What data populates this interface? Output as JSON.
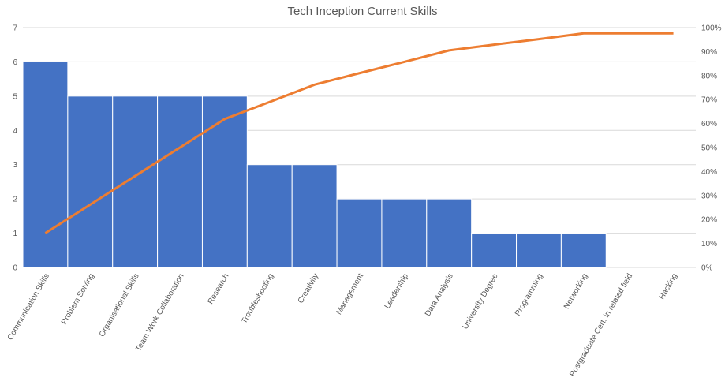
{
  "chart_data": {
    "type": "bar",
    "title": "Tech Inception Current Skills",
    "categories": [
      "Communication Skills",
      "Problem Solving",
      "Organisational Skills",
      "Team Work Collaboration",
      "Research",
      "Troubleshooting",
      "Creativity",
      "Management",
      "Leadership",
      "Data Analysis",
      "University Degree",
      "Programming",
      "Networking",
      "Postgraduate Cert. in related field",
      "Hacking"
    ],
    "series": [
      {
        "type": "bar",
        "values": [
          6,
          5,
          5,
          5,
          5,
          3,
          3,
          2,
          2,
          2,
          1,
          1,
          1,
          0,
          0
        ]
      },
      {
        "type": "line",
        "axis": "secondary",
        "values": [
          14.3,
          26.2,
          38.1,
          50.0,
          61.9,
          69.0,
          76.2,
          81.0,
          85.7,
          90.5,
          92.9,
          95.2,
          97.6,
          97.6,
          97.6
        ]
      }
    ],
    "ylim": [
      0,
      7
    ],
    "yticks": [
      "0",
      "1",
      "2",
      "3",
      "4",
      "5",
      "6",
      "7"
    ],
    "y2lim": [
      0,
      100
    ],
    "y2ticks": [
      "0%",
      "10%",
      "20%",
      "30%",
      "40%",
      "50%",
      "60%",
      "70%",
      "80%",
      "90%",
      "100%"
    ],
    "grid": true,
    "colors": {
      "bar": "#4472C4",
      "line": "#ED7D31",
      "grid": "#D9D9D9",
      "text": "#595959"
    }
  }
}
